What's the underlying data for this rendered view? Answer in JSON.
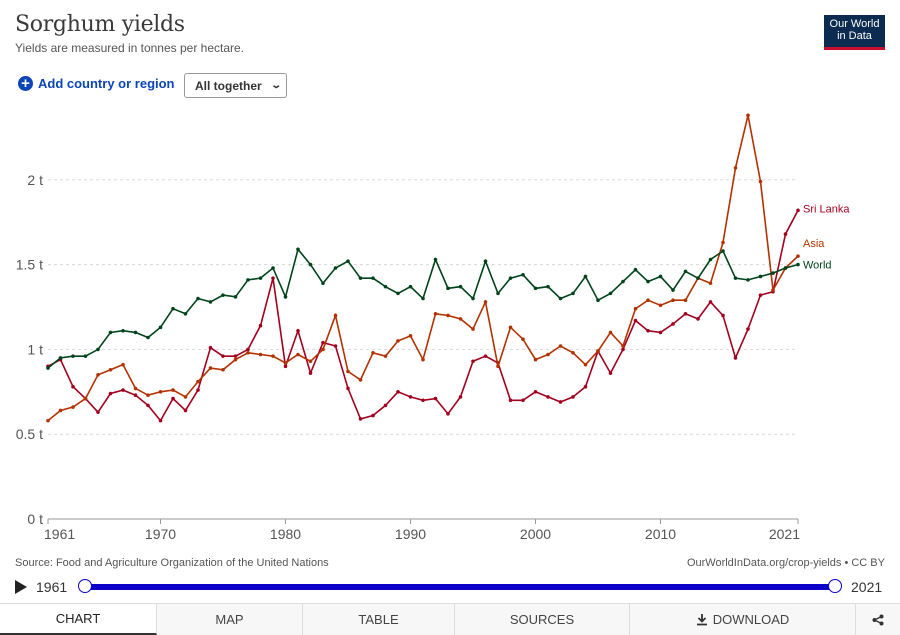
{
  "header": {
    "title": "Sorghum yields",
    "subtitle": "Yields are measured in tonnes per hectare.",
    "logo_line1": "Our World",
    "logo_line2": "in Data"
  },
  "controls": {
    "add_label": "Add country or region",
    "dropdown_value": "All together"
  },
  "chart_data": {
    "type": "line",
    "x_ticks": [
      1961,
      1970,
      1980,
      1990,
      2000,
      2010,
      2021
    ],
    "y_ticks": [
      "0 t",
      "0.5 t",
      "1 t",
      "1.5 t",
      "2 t"
    ],
    "ylim": [
      0,
      2.5
    ],
    "xlim": [
      1961,
      2021
    ],
    "grid": "horizontal dashed",
    "legend_placement": "line-end labels",
    "x": [
      1961,
      1962,
      1963,
      1964,
      1965,
      1966,
      1967,
      1968,
      1969,
      1970,
      1971,
      1972,
      1973,
      1974,
      1975,
      1976,
      1977,
      1978,
      1979,
      1980,
      1981,
      1982,
      1983,
      1984,
      1985,
      1986,
      1987,
      1988,
      1989,
      1990,
      1991,
      1992,
      1993,
      1994,
      1995,
      1996,
      1997,
      1998,
      1999,
      2000,
      2001,
      2002,
      2003,
      2004,
      2005,
      2006,
      2007,
      2008,
      2009,
      2010,
      2011,
      2012,
      2013,
      2014,
      2015,
      2016,
      2017,
      2018,
      2019,
      2020,
      2021
    ],
    "series": [
      {
        "name": "Sri Lanka",
        "color": "#a2001f",
        "values": [
          0.9,
          0.94,
          0.78,
          0.71,
          0.63,
          0.74,
          0.76,
          0.73,
          0.67,
          0.58,
          0.71,
          0.64,
          0.76,
          1.01,
          0.96,
          0.96,
          1.0,
          1.14,
          1.42,
          0.9,
          1.11,
          0.86,
          1.04,
          1.02,
          0.77,
          0.59,
          0.61,
          0.67,
          0.75,
          0.72,
          0.7,
          0.71,
          0.62,
          0.72,
          0.93,
          0.96,
          0.92,
          0.7,
          0.7,
          0.75,
          0.72,
          0.69,
          0.72,
          0.78,
          0.99,
          0.86,
          1.0,
          1.17,
          1.11,
          1.1,
          1.15,
          1.21,
          1.18,
          1.28,
          1.2,
          0.95,
          1.12,
          1.32,
          1.34,
          1.68,
          1.82
        ]
      },
      {
        "name": "Asia",
        "color": "#b23200",
        "values": [
          0.58,
          0.64,
          0.66,
          0.71,
          0.85,
          0.88,
          0.91,
          0.77,
          0.73,
          0.75,
          0.76,
          0.72,
          0.81,
          0.89,
          0.88,
          0.94,
          0.98,
          0.97,
          0.96,
          0.92,
          0.97,
          0.93,
          1.0,
          1.2,
          0.87,
          0.82,
          0.98,
          0.96,
          1.05,
          1.08,
          0.94,
          1.21,
          1.2,
          1.18,
          1.12,
          1.28,
          0.9,
          1.13,
          1.06,
          0.94,
          0.97,
          1.02,
          0.98,
          0.91,
          0.99,
          1.1,
          1.02,
          1.24,
          1.29,
          1.26,
          1.29,
          1.29,
          1.42,
          1.39,
          1.63,
          2.07,
          2.38,
          1.99,
          1.35,
          1.48,
          1.55
        ]
      },
      {
        "name": "World",
        "color": "#00441b",
        "values": [
          0.89,
          0.95,
          0.96,
          0.96,
          1.0,
          1.1,
          1.11,
          1.1,
          1.07,
          1.13,
          1.24,
          1.21,
          1.3,
          1.28,
          1.32,
          1.31,
          1.41,
          1.42,
          1.48,
          1.31,
          1.59,
          1.5,
          1.39,
          1.48,
          1.52,
          1.42,
          1.42,
          1.37,
          1.33,
          1.37,
          1.3,
          1.53,
          1.36,
          1.37,
          1.3,
          1.52,
          1.33,
          1.42,
          1.44,
          1.36,
          1.37,
          1.3,
          1.33,
          1.43,
          1.29,
          1.33,
          1.4,
          1.47,
          1.4,
          1.43,
          1.35,
          1.46,
          1.42,
          1.53,
          1.58,
          1.42,
          1.41,
          1.43,
          1.45,
          1.48,
          1.5
        ]
      }
    ]
  },
  "footer": {
    "source": "Source: Food and Agriculture Organization of the United Nations",
    "license": "OurWorldInData.org/crop-yields • CC BY"
  },
  "timeline": {
    "start": "1961",
    "end": "2021"
  },
  "tabs": [
    "CHART",
    "MAP",
    "TABLE",
    "SOURCES",
    "DOWNLOAD"
  ]
}
